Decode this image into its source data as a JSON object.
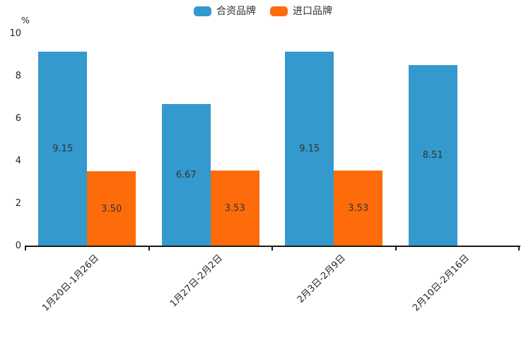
{
  "chart_data": {
    "type": "bar",
    "title": "",
    "unit_label": "%",
    "categories": [
      "1月20日-1月26日",
      "1月27日-2月2日",
      "2月3日-2月9日",
      "2月10日-2月16日"
    ],
    "series": [
      {
        "name": "合资品牌",
        "color": "#3499cd",
        "values": [
          9.15,
          6.67,
          9.15,
          8.51
        ]
      },
      {
        "name": "进口品牌",
        "color": "#fd6b0a",
        "values": [
          3.5,
          3.53,
          3.53,
          null
        ]
      }
    ],
    "value_label_format": "2dp",
    "ylim": [
      0,
      10
    ],
    "yticks": [
      0,
      2,
      4,
      6,
      8,
      10
    ],
    "grid": false,
    "legend_position": "top-center",
    "axis_color": "#1a1a1a",
    "label_color": "#333333"
  }
}
